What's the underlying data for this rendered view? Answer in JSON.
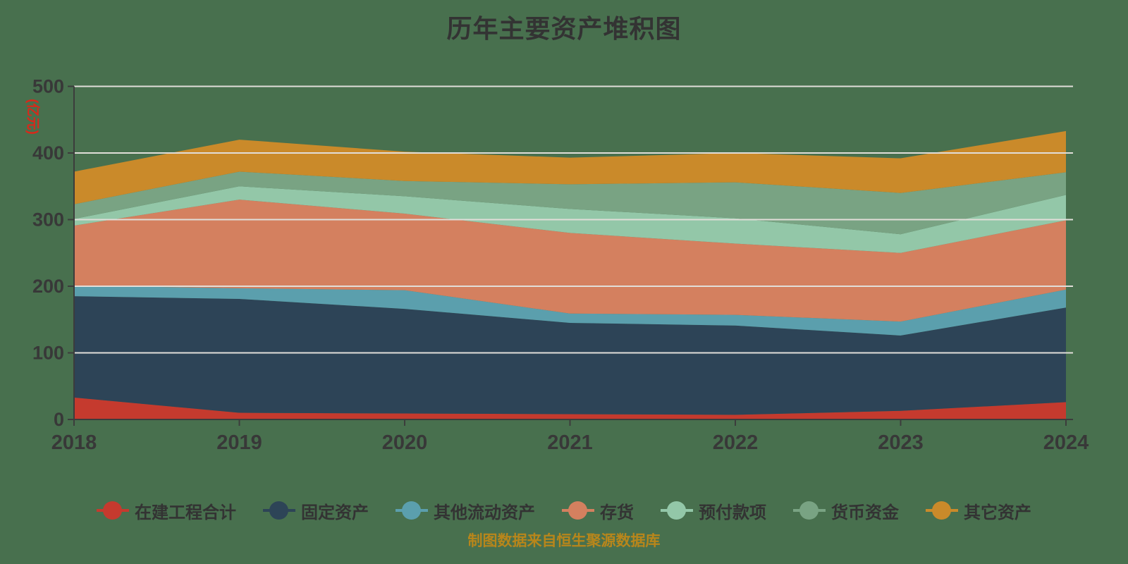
{
  "title": "历年主要资产堆积图",
  "attribution": "制图数据来自恒生聚源数据库",
  "y_axis": {
    "unit_label": "(亿元)",
    "unit_label_color": "#d9281a",
    "ticks": [
      0,
      100,
      200,
      300,
      400,
      500
    ]
  },
  "x_axis": {
    "categories": [
      "2018",
      "2019",
      "2020",
      "2021",
      "2022",
      "2023",
      "2024"
    ]
  },
  "colors": {
    "background": "#48704e",
    "grid_line": "#e1ded9",
    "axis_line": "#3c3c3c",
    "tick_label": "#383838",
    "title": "#333333",
    "legend_label": "#333333",
    "attribution": "#b8861b"
  },
  "chart_data": {
    "type": "area",
    "stacked": true,
    "title": "历年主要资产堆积图",
    "ylabel": "(亿元)",
    "xlabel": "",
    "ylim": [
      0,
      500
    ],
    "grid": true,
    "legend_position": "bottom",
    "categories": [
      "2018",
      "2019",
      "2020",
      "2021",
      "2022",
      "2023",
      "2024"
    ],
    "series": [
      {
        "name": "在建工程合计",
        "color": "#c53a2e",
        "values": [
          33,
          10,
          9,
          8,
          7,
          13,
          26
        ]
      },
      {
        "name": "固定资产",
        "color": "#2d4457",
        "values": [
          152,
          171,
          157,
          137,
          134,
          113,
          142
        ]
      },
      {
        "name": "其他流动资产",
        "color": "#5b9fad",
        "values": [
          16,
          16,
          28,
          14,
          16,
          21,
          27
        ]
      },
      {
        "name": "存货",
        "color": "#d4805f",
        "values": [
          90,
          133,
          115,
          121,
          107,
          103,
          104
        ]
      },
      {
        "name": "预付款项",
        "color": "#93c7a8",
        "values": [
          10,
          20,
          26,
          36,
          38,
          28,
          38
        ]
      },
      {
        "name": "货币资金",
        "color": "#79a383",
        "values": [
          22,
          22,
          23,
          37,
          54,
          62,
          34
        ]
      },
      {
        "name": "其它资产",
        "color": "#ca8a2a",
        "values": [
          49,
          48,
          44,
          40,
          44,
          52,
          62
        ]
      }
    ]
  }
}
